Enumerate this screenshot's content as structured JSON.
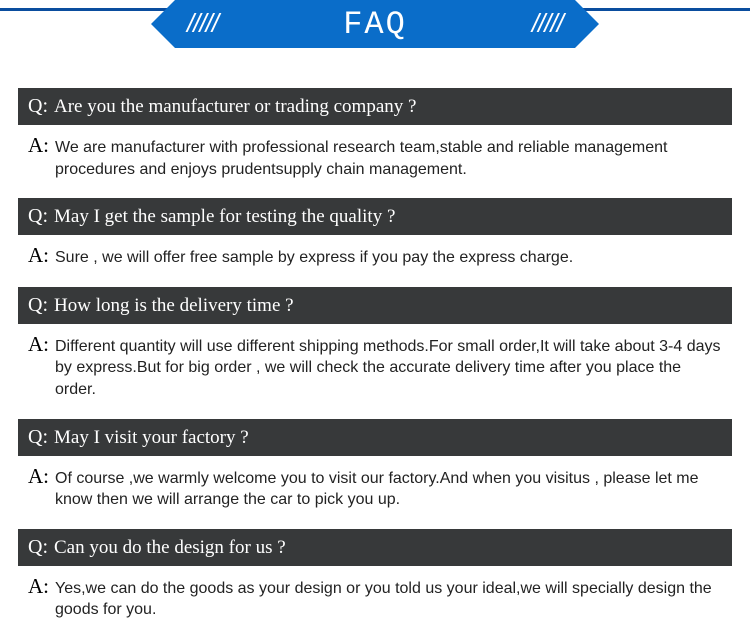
{
  "header": {
    "title": "FAQ",
    "slashes": "/////"
  },
  "colors": {
    "banner_bg": "#0a6dc9",
    "line": "#0a4d9e",
    "question_bg": "#37393a",
    "question_text": "#ffffff",
    "answer_text": "#222222",
    "background": "#ffffff"
  },
  "typography": {
    "title_font": "Courier New",
    "title_size": 32,
    "question_font": "Times New Roman",
    "question_size": 19,
    "answer_size": 16
  },
  "labels": {
    "q": "Q:",
    "a": "A:"
  },
  "faq": [
    {
      "question": "Are you the manufacturer or trading company ?",
      "answer": "We are manufacturer with professional research team,stable and reliable management procedures and enjoys prudentsupply chain management."
    },
    {
      "question": "May I get the sample for testing the quality ?",
      "answer": "Sure , we will offer free sample by express if you pay the express charge."
    },
    {
      "question": "How long is the delivery time ?",
      "answer": "Different quantity will use different shipping methods.For small order,It will take about 3-4 days by express.But for big order , we will check the accurate delivery time after you place the order."
    },
    {
      "question": "May I visit your factory ?",
      "answer": "Of course ,we warmly welcome you to visit our factory.And when you visitus , please let me know then we will arrange the car to pick you up."
    },
    {
      "question": "Can you do the design for us ?",
      "answer": "Yes,we can do the goods as your design or you told us your ideal,we will specially design the goods for you."
    }
  ]
}
